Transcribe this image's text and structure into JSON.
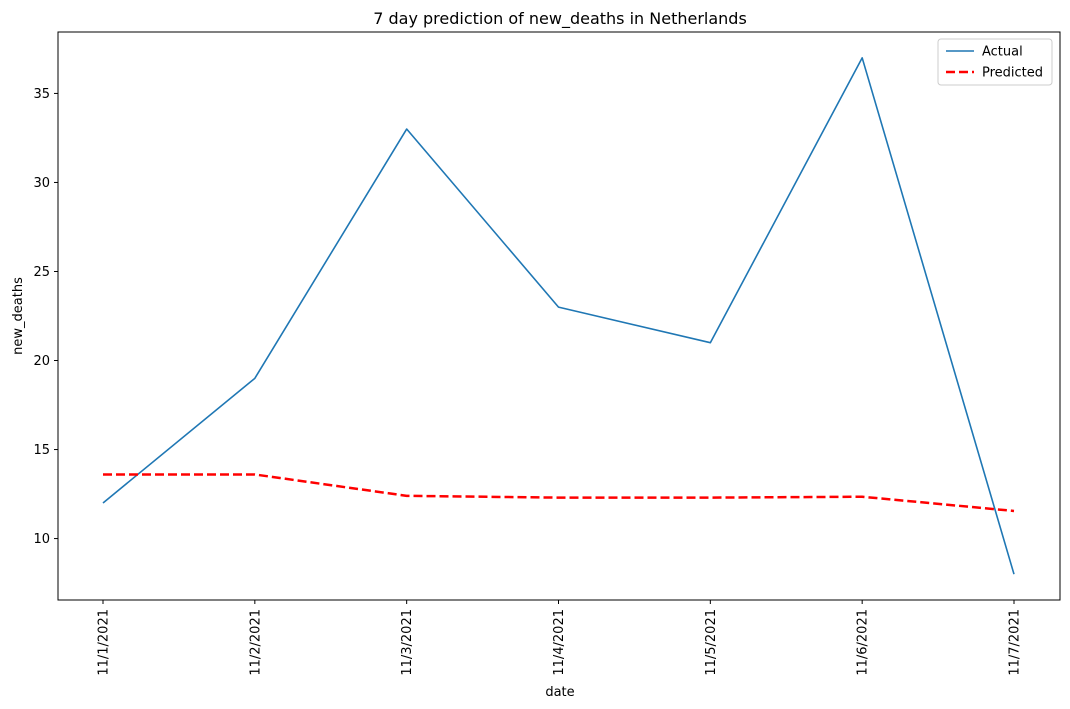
{
  "chart_data": {
    "type": "line",
    "title": "7 day prediction of new_deaths in Netherlands",
    "xlabel": "date",
    "ylabel": "new_deaths",
    "categories": [
      "11/1/2021",
      "11/2/2021",
      "11/3/2021",
      "11/4/2021",
      "11/5/2021",
      "11/6/2021",
      "11/7/2021"
    ],
    "series": [
      {
        "name": "Actual",
        "values": [
          12,
          19,
          33,
          23,
          21,
          37,
          8
        ],
        "color": "#1f77b4",
        "style": "solid"
      },
      {
        "name": "Predicted",
        "values": [
          13.6,
          13.6,
          12.4,
          12.3,
          12.3,
          12.35,
          11.55
        ],
        "color": "#ff0000",
        "style": "dashed"
      }
    ],
    "yticks": [
      10,
      15,
      20,
      25,
      30,
      35
    ],
    "ylim": [
      6.55,
      38.45
    ],
    "grid": false,
    "legend": "top-right"
  }
}
